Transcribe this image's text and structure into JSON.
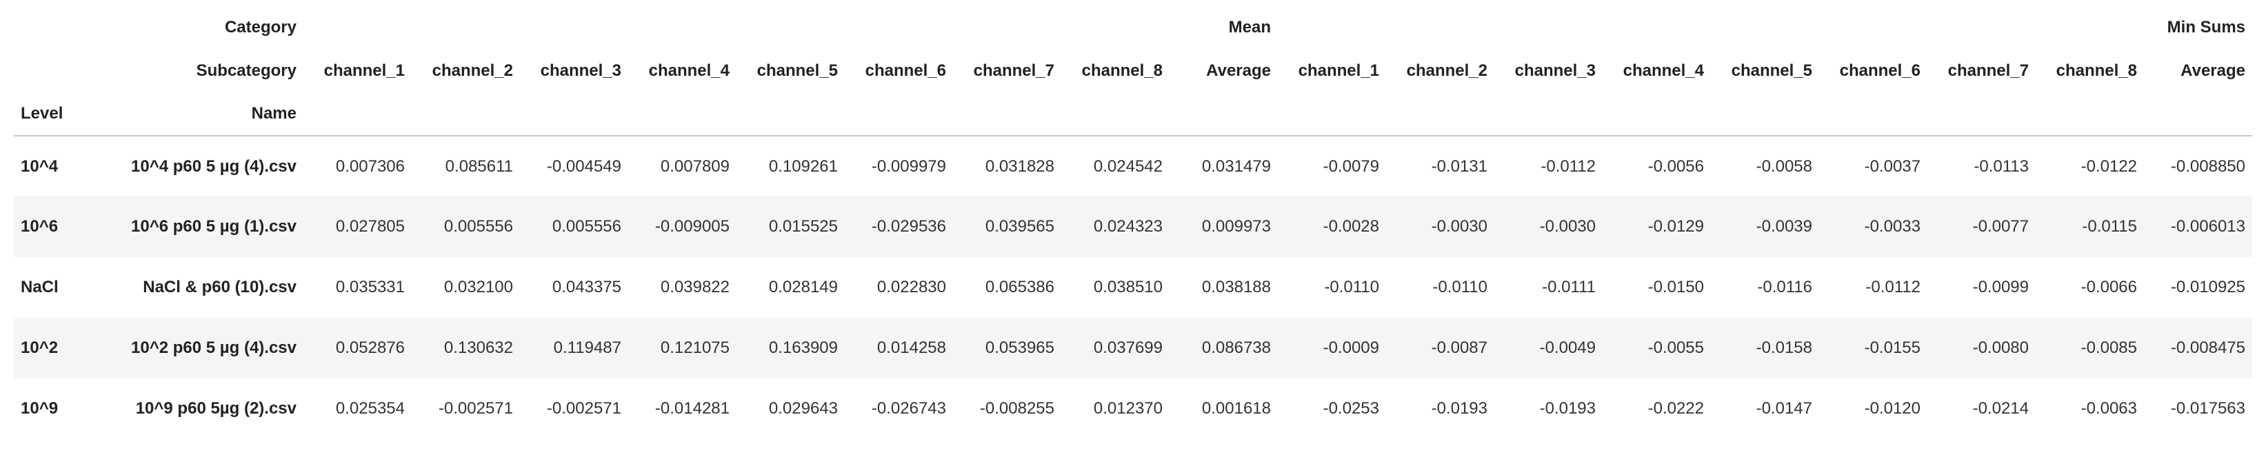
{
  "header": {
    "category_label": "Category",
    "subcategory_label": "Subcategory",
    "categories": [
      "Mean",
      "Min Sums"
    ],
    "subcategories": [
      "channel_1",
      "channel_2",
      "channel_3",
      "channel_4",
      "channel_5",
      "channel_6",
      "channel_7",
      "channel_8",
      "Average",
      "channel_1",
      "channel_2",
      "channel_3",
      "channel_4",
      "channel_5",
      "channel_6",
      "channel_7",
      "channel_8",
      "Average"
    ],
    "index_names": [
      "Level",
      "Name"
    ]
  },
  "table": {
    "rows": [
      {
        "level": "10^4",
        "name": "10^4 p60 5 µg (4).csv",
        "values": [
          "0.007306",
          "0.085611",
          "-0.004549",
          "0.007809",
          "0.109261",
          "-0.009979",
          "0.031828",
          "0.024542",
          "0.031479",
          "-0.0079",
          "-0.0131",
          "-0.0112",
          "-0.0056",
          "-0.0058",
          "-0.0037",
          "-0.0113",
          "-0.0122",
          "-0.008850"
        ]
      },
      {
        "level": "10^6",
        "name": "10^6 p60 5 µg (1).csv",
        "values": [
          "0.027805",
          "0.005556",
          "0.005556",
          "-0.009005",
          "0.015525",
          "-0.029536",
          "0.039565",
          "0.024323",
          "0.009973",
          "-0.0028",
          "-0.0030",
          "-0.0030",
          "-0.0129",
          "-0.0039",
          "-0.0033",
          "-0.0077",
          "-0.0115",
          "-0.006013"
        ]
      },
      {
        "level": "NaCl",
        "name": "NaCl & p60 (10).csv",
        "values": [
          "0.035331",
          "0.032100",
          "0.043375",
          "0.039822",
          "0.028149",
          "0.022830",
          "0.065386",
          "0.038510",
          "0.038188",
          "-0.0110",
          "-0.0110",
          "-0.0111",
          "-0.0150",
          "-0.0116",
          "-0.0112",
          "-0.0099",
          "-0.0066",
          "-0.010925"
        ]
      },
      {
        "level": "10^2",
        "name": "10^2 p60 5 µg (4).csv",
        "values": [
          "0.052876",
          "0.130632",
          "0.119487",
          "0.121075",
          "0.163909",
          "0.014258",
          "0.053965",
          "0.037699",
          "0.086738",
          "-0.0009",
          "-0.0087",
          "-0.0049",
          "-0.0055",
          "-0.0158",
          "-0.0155",
          "-0.0080",
          "-0.0085",
          "-0.008475"
        ]
      },
      {
        "level": "10^9",
        "name": "10^9 p60 5µg (2).csv",
        "values": [
          "0.025354",
          "-0.002571",
          "-0.002571",
          "-0.014281",
          "0.029643",
          "-0.026743",
          "-0.008255",
          "0.012370",
          "0.001618",
          "-0.0253",
          "-0.0193",
          "-0.0193",
          "-0.0222",
          "-0.0147",
          "-0.0120",
          "-0.0214",
          "-0.0063",
          "-0.017563"
        ]
      }
    ]
  }
}
